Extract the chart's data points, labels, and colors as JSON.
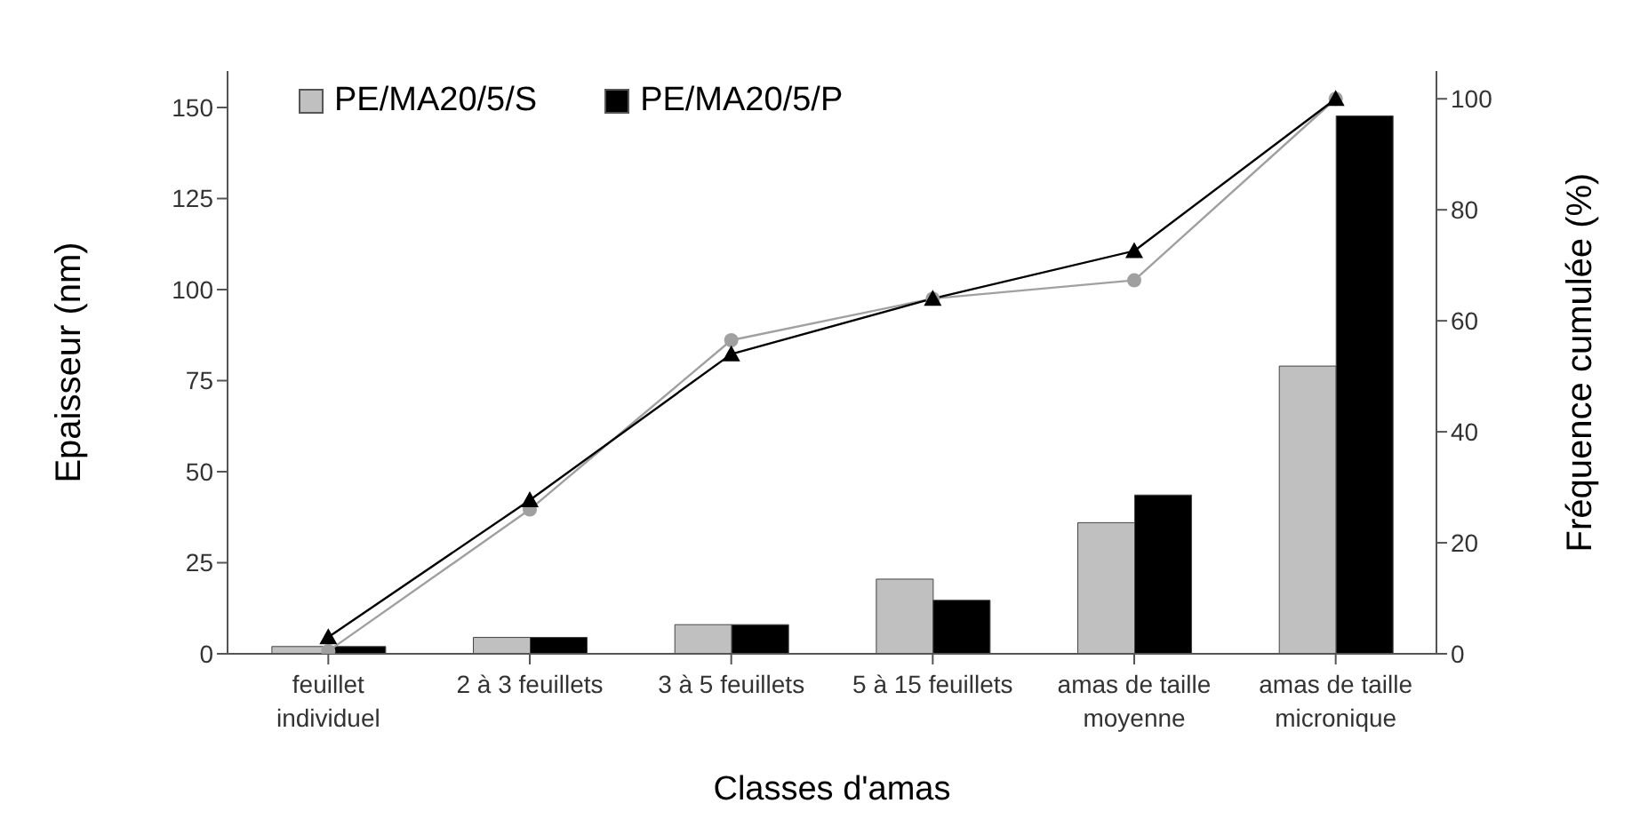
{
  "chart_data": {
    "type": "bar",
    "xlabel": "Classes d'amas",
    "ylabel": "Epaisseur  (nm)",
    "y2label": "Fréquence cumulée  (%)",
    "categories": [
      "feuillet individuel",
      "2 à 3 feuillets",
      "3 à 5 feuillets",
      "5 à 15 feuillets",
      "amas de taille moyenne",
      "amas de taille micronique"
    ],
    "series": [
      {
        "name": "PE/MA20/5/S",
        "color": "#c0c0c0",
        "values": [
          2,
          4.5,
          8,
          20.5,
          36,
          79
        ]
      },
      {
        "name": "PE/MA20/5/P",
        "color": "#000000",
        "values": [
          2,
          4.5,
          8,
          14.7,
          43.6,
          147.7
        ]
      },
      {
        "type": "line",
        "axis": "y2",
        "color": "#a0a0a0",
        "marker": "circle",
        "values": [
          0.5,
          26,
          56.5,
          64,
          67.3,
          100
        ]
      },
      {
        "type": "line",
        "axis": "y2",
        "color": "#000000",
        "marker": "triangle",
        "values": [
          3,
          27.7,
          54,
          64,
          72.6,
          100
        ]
      }
    ],
    "ylim": [
      0,
      160
    ],
    "yticks": [
      0,
      25,
      50,
      75,
      100,
      125,
      150
    ],
    "y2lim": [
      0,
      105
    ],
    "y2ticks": [
      0,
      20,
      40,
      60,
      80,
      100
    ],
    "grid": false,
    "legend": "top left"
  }
}
